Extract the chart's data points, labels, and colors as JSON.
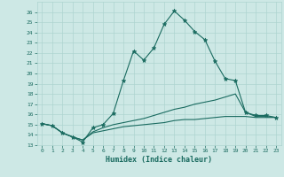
{
  "xlabel": "Humidex (Indice chaleur)",
  "background_color": "#cde8e5",
  "grid_color": "#aed4d0",
  "line_color": "#1a6b60",
  "xlim": [
    -0.5,
    23.5
  ],
  "ylim": [
    13,
    27
  ],
  "xticks": [
    0,
    1,
    2,
    3,
    4,
    5,
    6,
    7,
    8,
    9,
    10,
    11,
    12,
    13,
    14,
    15,
    16,
    17,
    18,
    19,
    20,
    21,
    22,
    23
  ],
  "yticks": [
    13,
    14,
    15,
    16,
    17,
    18,
    19,
    20,
    21,
    22,
    23,
    24,
    25,
    26
  ],
  "line1_x": [
    0,
    1,
    2,
    3,
    4,
    5,
    6,
    7,
    8,
    9,
    10,
    11,
    12,
    13,
    14,
    15,
    16,
    17,
    18,
    19,
    20,
    21,
    22,
    23
  ],
  "line1_y": [
    15.1,
    14.9,
    14.2,
    13.8,
    13.3,
    14.7,
    15.0,
    16.1,
    19.3,
    22.2,
    21.3,
    22.5,
    24.8,
    26.1,
    25.2,
    24.1,
    23.3,
    21.2,
    19.5,
    19.3,
    16.2,
    15.9,
    15.9,
    15.7
  ],
  "line2_x": [
    0,
    1,
    2,
    3,
    4,
    5,
    6,
    7,
    8,
    9,
    10,
    11,
    12,
    13,
    14,
    15,
    16,
    17,
    18,
    19,
    20,
    21,
    22,
    23
  ],
  "line2_y": [
    15.1,
    14.9,
    14.2,
    13.8,
    13.5,
    14.3,
    14.7,
    15.0,
    15.2,
    15.4,
    15.6,
    15.9,
    16.2,
    16.5,
    16.7,
    17.0,
    17.2,
    17.4,
    17.7,
    18.0,
    16.2,
    15.8,
    15.8,
    15.7
  ],
  "line3_x": [
    0,
    1,
    2,
    3,
    4,
    5,
    6,
    7,
    8,
    9,
    10,
    11,
    12,
    13,
    14,
    15,
    16,
    17,
    18,
    19,
    20,
    21,
    22,
    23
  ],
  "line3_y": [
    15.1,
    14.9,
    14.2,
    13.8,
    13.5,
    14.2,
    14.4,
    14.6,
    14.8,
    14.9,
    15.0,
    15.1,
    15.2,
    15.4,
    15.5,
    15.5,
    15.6,
    15.7,
    15.8,
    15.8,
    15.8,
    15.7,
    15.7,
    15.7
  ]
}
